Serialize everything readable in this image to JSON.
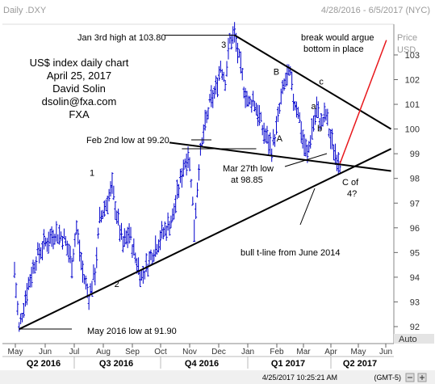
{
  "header": {
    "title": "Daily .DXY",
    "date_range": "4/28/2016 - 6/5/2017 (NYC)"
  },
  "price_axis": {
    "label_top": "Price",
    "label_currency": "USD",
    "auto_label": "Auto"
  },
  "info_block": {
    "line1": "US$ index daily chart",
    "line2": "April 25, 2017",
    "line3": "David Solin",
    "line4": "dsolin@fxa.com",
    "line5": "FXA"
  },
  "status_bar": {
    "timestamp": "4/25/2017 10:25:21 AM",
    "timezone": "(GMT-5)"
  },
  "colors": {
    "bars": "#0000cc",
    "trendlines": "#000000",
    "projection": "#e8171b",
    "axis": "#666666",
    "header_text": "#9a9a9a"
  },
  "chart_data": {
    "type": "ohlc",
    "ylim": [
      91.9,
      104.3
    ],
    "y_ticks": [
      92,
      93,
      94,
      95,
      96,
      97,
      98,
      99,
      100,
      101,
      102,
      103
    ],
    "y_tick_labels": [
      "92",
      "93",
      "94",
      "95",
      "96",
      "97",
      "98",
      "99",
      "100",
      "101",
      "102",
      "103"
    ],
    "x_months": [
      "May",
      "Jun",
      "Jul",
      "Aug",
      "Sep",
      "Oct",
      "Nov",
      "Dec",
      "Jan",
      "Feb",
      "Mar",
      "Apr",
      "May",
      "Jun"
    ],
    "quarters": [
      "Q2 2016",
      "Q3 2016",
      "Q4 2016",
      "Q1 2017",
      "Q2 2017"
    ],
    "price_path": [
      [
        0,
        94.3
      ],
      [
        3,
        91.9
      ],
      [
        8,
        93.5
      ],
      [
        14,
        94.8
      ],
      [
        20,
        95.4
      ],
      [
        26,
        95.8
      ],
      [
        32,
        95.6
      ],
      [
        37,
        94.6
      ],
      [
        40,
        96.0
      ],
      [
        44,
        94.2
      ],
      [
        48,
        93.2
      ],
      [
        52,
        94.2
      ],
      [
        55,
        96.3
      ],
      [
        58,
        96.8
      ],
      [
        61,
        97.3
      ],
      [
        63,
        97.6
      ],
      [
        67,
        96.2
      ],
      [
        70,
        95.3
      ],
      [
        74,
        95.8
      ],
      [
        78,
        94.8
      ],
      [
        82,
        94.0
      ],
      [
        85,
        94.4
      ],
      [
        89,
        95.0
      ],
      [
        94,
        95.6
      ],
      [
        98,
        96.0
      ],
      [
        102,
        96.4
      ],
      [
        106,
        97.6
      ],
      [
        109,
        98.5
      ],
      [
        112,
        99.0
      ],
      [
        114,
        98.0
      ],
      [
        116,
        96.0
      ],
      [
        119,
        98.5
      ],
      [
        122,
        99.8
      ],
      [
        126,
        101.0
      ],
      [
        130,
        101.6
      ],
      [
        133,
        102.6
      ],
      [
        136,
        102.0
      ],
      [
        139,
        103.6
      ],
      [
        142,
        103.8
      ],
      [
        145,
        102.8
      ],
      [
        148,
        101.7
      ],
      [
        151,
        101.0
      ],
      [
        154,
        101.2
      ],
      [
        157,
        100.7
      ],
      [
        160,
        100.0
      ],
      [
        163,
        99.6
      ],
      [
        166,
        99.2
      ],
      [
        169,
        100.0
      ],
      [
        172,
        101.2
      ],
      [
        175,
        102.0
      ],
      [
        178,
        102.2
      ],
      [
        180,
        101.2
      ],
      [
        183,
        100.8
      ],
      [
        186,
        99.6
      ],
      [
        189,
        98.9
      ],
      [
        192,
        100.0
      ],
      [
        195,
        100.8
      ],
      [
        198,
        100.2
      ],
      [
        201,
        100.6
      ],
      [
        204,
        99.6
      ],
      [
        207,
        99.0
      ],
      [
        210,
        98.7
      ]
    ],
    "lines": [
      {
        "name": "bull t-line from June 2014",
        "from": [
          3,
          91.9
        ],
        "to": [
          243,
          99.2
        ]
      },
      {
        "name": "descending resistance",
        "from": [
          142,
          103.8
        ],
        "to": [
          243,
          100.0
        ]
      },
      {
        "name": "falling support",
        "from": [
          100,
          99.45
        ],
        "to": [
          243,
          98.3
        ]
      }
    ],
    "ref_lines": [
      {
        "name": "Jan 3rd high",
        "from": [
          97,
          103.8
        ],
        "to": [
          142,
          103.8
        ]
      },
      {
        "name": "May 2016 low",
        "from": [
          3,
          91.9
        ],
        "to": [
          37,
          91.9
        ]
      },
      {
        "name": "Feb 2nd low",
        "from": [
          108,
          99.2
        ],
        "to": [
          156,
          99.2
        ]
      }
    ],
    "projection": {
      "from": [
        210,
        98.6
      ],
      "to": [
        240,
        103.6
      ]
    },
    "wave_labels": [
      {
        "text": "1",
        "x": 50,
        "y": 98.1
      },
      {
        "text": "2",
        "x": 66,
        "y": 93.6
      },
      {
        "text": "3",
        "x": 135,
        "y": 103.3
      },
      {
        "text": "B",
        "x": 169,
        "y": 102.2
      },
      {
        "text": "A",
        "x": 171,
        "y": 99.5
      },
      {
        "text": "c",
        "x": 198,
        "y": 101.8
      },
      {
        "text": "a",
        "x": 193,
        "y": 100.8
      },
      {
        "text": "b",
        "x": 197,
        "y": 99.9
      }
    ],
    "annotations": {
      "jan_high": "Jan 3rd high at 103.80",
      "break_line1": "break would argue",
      "break_line2": "bottom in place",
      "feb_low": "Feb 2nd low at 99.20",
      "mar_low_line1": "Mar 27th low",
      "mar_low_line2": "at 98.85",
      "c4_line1": "C of",
      "c4_line2": "4?",
      "bull_tline": "bull t-line from June 2014",
      "may_low": "May 2016 low at 91.90"
    }
  }
}
